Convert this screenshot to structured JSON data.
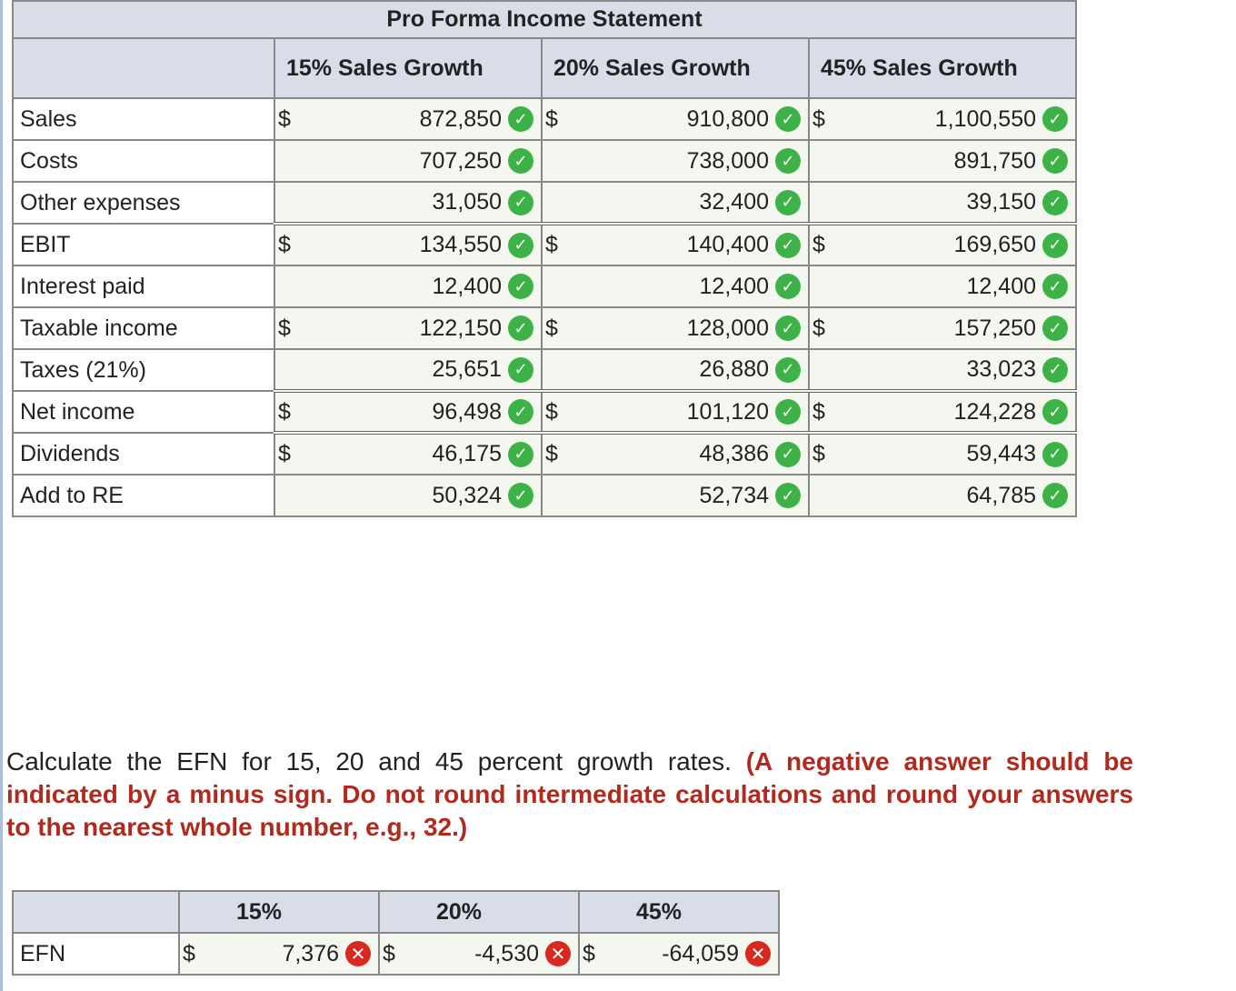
{
  "income_statement": {
    "title": "Pro Forma Income Statement",
    "columns": [
      "15% Sales Growth",
      "20% Sales Growth",
      "45% Sales Growth"
    ],
    "rows": [
      {
        "label": "Sales",
        "dollar": [
          "$",
          "$",
          "$"
        ],
        "values": [
          "872,850",
          "910,800",
          "1,100,550"
        ]
      },
      {
        "label": "Costs",
        "dollar": [
          "",
          "",
          ""
        ],
        "values": [
          "707,250",
          "738,000",
          "891,750"
        ]
      },
      {
        "label": "Other expenses",
        "dollar": [
          "",
          "",
          ""
        ],
        "values": [
          "31,050",
          "32,400",
          "39,150"
        ]
      },
      {
        "label": "EBIT",
        "dollar": [
          "$",
          "$",
          "$"
        ],
        "values": [
          "134,550",
          "140,400",
          "169,650"
        ]
      },
      {
        "label": "Interest paid",
        "dollar": [
          "",
          "",
          ""
        ],
        "values": [
          "12,400",
          "12,400",
          "12,400"
        ]
      },
      {
        "label": "Taxable income",
        "dollar": [
          "$",
          "$",
          "$"
        ],
        "values": [
          "122,150",
          "128,000",
          "157,250"
        ]
      },
      {
        "label": "Taxes (21%)",
        "dollar": [
          "",
          "",
          ""
        ],
        "values": [
          "25,651",
          "26,880",
          "33,023"
        ]
      },
      {
        "label": "Net income",
        "dollar": [
          "$",
          "$",
          "$"
        ],
        "values": [
          "96,498",
          "101,120",
          "124,228"
        ]
      },
      {
        "label": "Dividends",
        "dollar": [
          "$",
          "$",
          "$"
        ],
        "values": [
          "46,175",
          "48,386",
          "59,443"
        ]
      },
      {
        "label": "Add to RE",
        "dollar": [
          "",
          "",
          ""
        ],
        "values": [
          "50,324",
          "52,734",
          "64,785"
        ]
      }
    ]
  },
  "question": {
    "text": "Calculate the EFN for 15, 20 and 45 percent growth rates.",
    "emphasis": "(A negative answer should be indicated by a minus sign. Do not round intermediate calculations and round your answers to the nearest whole number, e.g., 32.)"
  },
  "efn": {
    "columns": [
      "15%",
      "20%",
      "45%"
    ],
    "label": "EFN",
    "dollar": [
      "$",
      "$",
      "$"
    ],
    "values": [
      "7,376",
      "-4,530",
      "-64,059"
    ]
  },
  "icons": {
    "correct": "check-circle-icon",
    "incorrect": "x-circle-icon",
    "correct_color": "#3db247",
    "incorrect_color": "#d9281e"
  }
}
